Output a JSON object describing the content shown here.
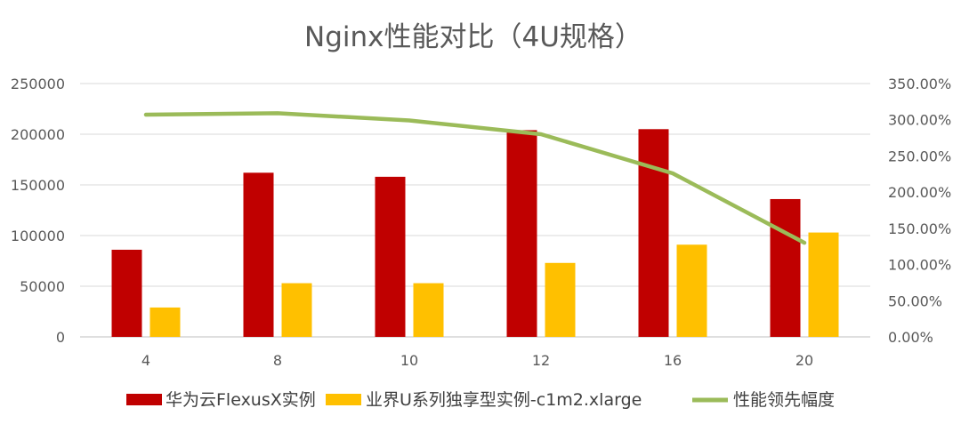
{
  "chart_data": {
    "type": "bar",
    "title": "Nginx性能对比（4U规格）",
    "categories": [
      "4",
      "8",
      "10",
      "12",
      "16",
      "20"
    ],
    "series": [
      {
        "name": "华为云FlexusX实例",
        "type": "bar",
        "axis": "left",
        "color": "#C00000",
        "values": [
          86000,
          162000,
          158000,
          204000,
          205000,
          136000
        ]
      },
      {
        "name": "业界U系列独享型实例-c1m2.xlarge",
        "type": "bar",
        "axis": "left",
        "color": "#FFC000",
        "values": [
          29000,
          53000,
          53000,
          73000,
          91000,
          103000
        ]
      },
      {
        "name": "性能领先幅度",
        "type": "line",
        "axis": "right",
        "color": "#9BBB59",
        "values": [
          307,
          309,
          299,
          280,
          226,
          130
        ]
      }
    ],
    "y_left": {
      "min": 0,
      "max": 250000,
      "step": 50000,
      "ticks": [
        "0",
        "50000",
        "100000",
        "150000",
        "200000",
        "250000"
      ]
    },
    "y_right": {
      "min": 0,
      "max": 350,
      "step": 50,
      "ticks": [
        "0.00%",
        "50.00%",
        "100.00%",
        "150.00%",
        "200.00%",
        "250.00%",
        "300.00%",
        "350.00%"
      ]
    },
    "grid": true,
    "legend": "bottom"
  }
}
